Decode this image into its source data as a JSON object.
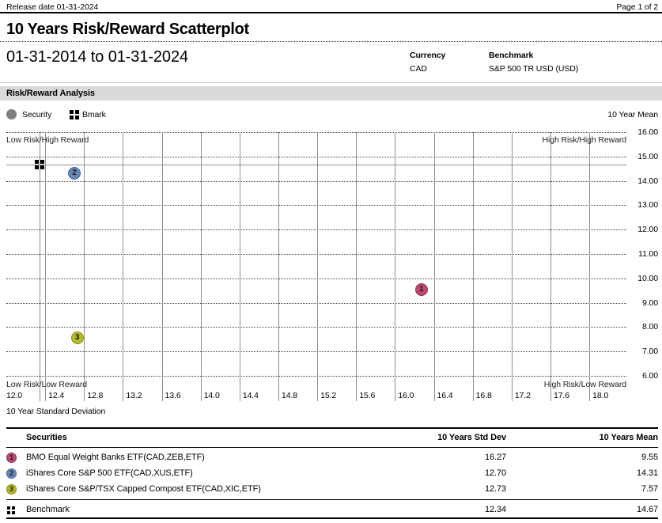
{
  "header": {
    "release_date": "Release date 01-31-2024",
    "page": "Page 1 of 2"
  },
  "title": "10 Years Risk/Reward Scatterplot",
  "subheader": {
    "date_range": "01-31-2014 to 01-31-2024",
    "currency_label": "Currency",
    "currency_value": "CAD",
    "benchmark_label": "Benchmark",
    "benchmark_value": "S&P 500 TR USD (USD)"
  },
  "section_title": "Risk/Reward Analysis",
  "legend": {
    "security_label": "Security",
    "bmark_label": "Bmark",
    "right_label": "10 Year Mean"
  },
  "chart_data": {
    "type": "scatter",
    "xlabel": "10 Year Standard Deviation",
    "ylabel": "10 Year Mean",
    "xlim": [
      12.0,
      18.35
    ],
    "ylim": [
      6.0,
      16.0
    ],
    "x_ticks": [
      "12.0",
      "12.4",
      "12.8",
      "13.2",
      "13.6",
      "14.0",
      "14.4",
      "14.8",
      "15.2",
      "15.6",
      "16.0",
      "16.4",
      "16.8",
      "17.2",
      "17.6",
      "18.0"
    ],
    "y_ticks": [
      "16.00",
      "15.00",
      "14.00",
      "13.00",
      "12.00",
      "11.00",
      "10.00",
      "9.00",
      "8.00",
      "7.00",
      "6.00"
    ],
    "grid": {
      "horizontal": "dotted",
      "vertical": "solid"
    },
    "quadrant_labels": {
      "top_left": "Low Risk/High Reward",
      "top_right": "High Risk/High Reward",
      "bottom_left": "Low Risk/Low Reward",
      "bottom_right": "High Risk/Low Reward"
    },
    "points": [
      {
        "label": "1",
        "name": "BMO Equal Weight Banks ETF(CAD,ZEB,ETF)",
        "x": 16.27,
        "y": 9.55,
        "fill": "#ba4a6f",
        "border": "#8e3053"
      },
      {
        "label": "2",
        "name": "iShares Core S&P 500 ETF(CAD,XUS,ETF)",
        "x": 12.7,
        "y": 14.31,
        "fill": "#6787b7",
        "border": "#44689c"
      },
      {
        "label": "3",
        "name": "iShares Core S&P/TSX Capped Compost ETF(CAD,XIC,ETF)",
        "x": 12.73,
        "y": 7.57,
        "fill": "#b4b82c",
        "border": "#8c9110"
      }
    ],
    "benchmark": {
      "name": "Benchmark",
      "x": 12.34,
      "y": 14.67,
      "crosshair": true,
      "color": "#000000"
    }
  },
  "table": {
    "headers": {
      "securities": "Securities",
      "std_dev": "10 Years Std Dev",
      "mean": "10 Years Mean"
    },
    "rows": [
      {
        "marker": "1",
        "name": "BMO Equal Weight Banks ETF(CAD,ZEB,ETF)",
        "std_dev": "16.27",
        "mean": "9.55"
      },
      {
        "marker": "2",
        "name": "iShares Core S&P 500 ETF(CAD,XUS,ETF)",
        "std_dev": "12.70",
        "mean": "14.31"
      },
      {
        "marker": "3",
        "name": "iShares Core S&P/TSX Capped Compost ETF(CAD,XIC,ETF)",
        "std_dev": "12.73",
        "mean": "7.57"
      }
    ],
    "benchmark_row": {
      "name": "Benchmark",
      "std_dev": "12.34",
      "mean": "14.67"
    }
  },
  "colors": {
    "section_bar_bg": "#d9d9d9",
    "gridline": "#8f8f8f",
    "security_legend_dot": "#7f7f7f"
  }
}
